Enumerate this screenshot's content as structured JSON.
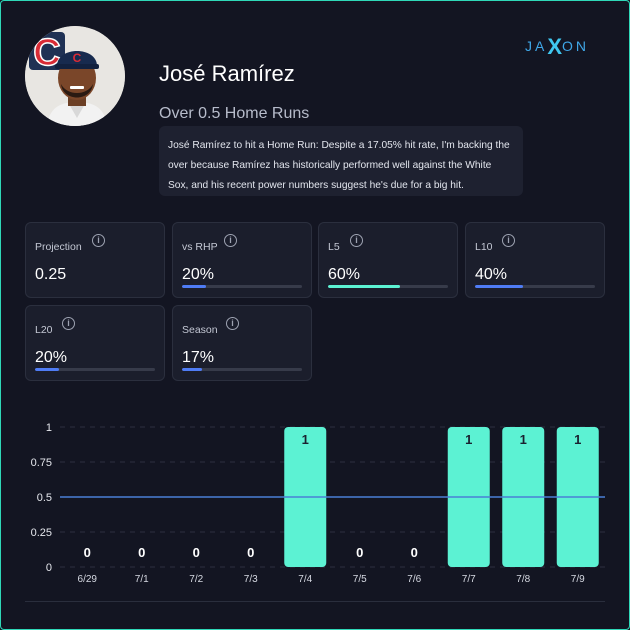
{
  "brand": {
    "left": "JA",
    "x": "X",
    "right": "ON"
  },
  "player": {
    "name": "José Ramírez",
    "team_logo_letter": "C"
  },
  "prop": {
    "title": "Over 0.5 Home Runs",
    "analysis": "José Ramírez to hit a Home Run: Despite a 17.05% hit rate, I'm backing the over because Ramírez has historically performed well against the White Sox, and his recent power numbers suggest he's due for a big hit."
  },
  "stats": [
    {
      "label": "Projection",
      "value": "0.25"
    },
    {
      "label": "vs RHP",
      "value": "20%",
      "fill": 0.2,
      "color": "#4f7cf5"
    },
    {
      "label": "L5",
      "value": "60%",
      "fill": 0.6,
      "color": "#5cf2d3"
    },
    {
      "label": "L10",
      "value": "40%",
      "fill": 0.4,
      "color": "#4f7cf5"
    },
    {
      "label": "L20",
      "value": "20%",
      "fill": 0.2,
      "color": "#4f7cf5"
    },
    {
      "label": "Season",
      "value": "17%",
      "fill": 0.17,
      "color": "#4f7cf5"
    }
  ],
  "chart_data": {
    "type": "bar",
    "categories": [
      "6/29",
      "7/1",
      "7/2",
      "7/3",
      "7/4",
      "7/5",
      "7/6",
      "7/7",
      "7/8",
      "7/9"
    ],
    "values": [
      0,
      0,
      0,
      0,
      1,
      0,
      0,
      1,
      1,
      1
    ],
    "labels": [
      "0",
      "0",
      "0",
      "0",
      "1",
      "0",
      "0",
      "1",
      "1",
      "1"
    ],
    "yticks": [
      "0",
      "0.25",
      "0.5",
      "0.75",
      "1"
    ],
    "ylim": [
      0,
      1
    ],
    "line_value": 0.5,
    "bar_color": "#5cf2d3",
    "line_color": "#4a7fd6",
    "grid": true
  }
}
